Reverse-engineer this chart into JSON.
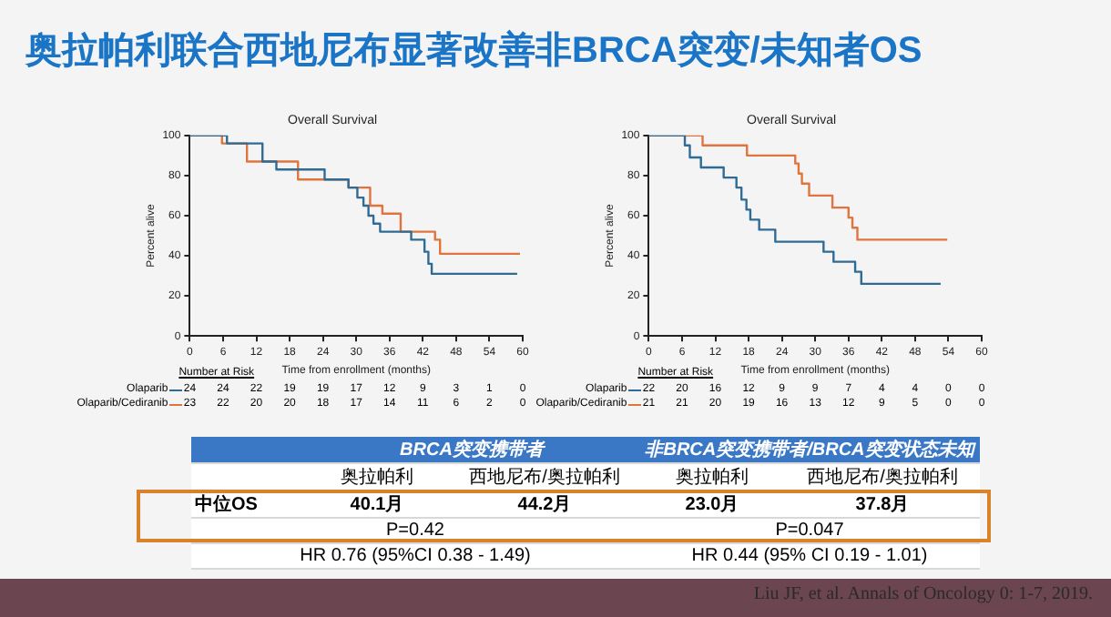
{
  "chart_data": [
    {
      "type": "step",
      "title": "Overall Survival",
      "xlabel": "Time from enrollment (months)",
      "ylabel": "Percent alive",
      "xlim": [
        0,
        60
      ],
      "xticks": [
        0,
        6,
        12,
        18,
        24,
        30,
        36,
        42,
        48,
        54,
        60
      ],
      "ylim": [
        0,
        100
      ],
      "yticks": [
        0,
        20,
        40,
        60,
        80,
        100
      ],
      "grid": false,
      "marker": "none",
      "legend": "bottom left",
      "annotations": [
        "Number at Risk",
        "24 24 22 19 19 17 12 9 3 1 0",
        "23 22 20 20 18 17 14 11 6 2 0"
      ],
      "series": [
        {
          "name": "Olaparib",
          "color": "#2f6b94",
          "x": [
            0,
            6.7,
            13.1,
            15.6,
            24.3,
            28.6,
            30.2,
            31.3,
            32.2,
            33.1,
            34.3,
            39.9,
            42.3,
            43,
            43.6,
            59
          ],
          "values": [
            100,
            96,
            87,
            83,
            78,
            74,
            69,
            65,
            60,
            56,
            52,
            48,
            42,
            36,
            31,
            31
          ]
        },
        {
          "name": "Olaparib/Cediranib",
          "color": "#e0743e",
          "x": [
            0,
            5.8,
            10.3,
            19.5,
            28.6,
            32.5,
            34.7,
            38,
            44.2,
            45.1,
            59.5
          ],
          "values": [
            100,
            96,
            87,
            78,
            74,
            65,
            61,
            52,
            48,
            41,
            41
          ]
        }
      ]
    },
    {
      "type": "step",
      "title": "Overall Survival",
      "xlabel": "Time from enrollment (months)",
      "ylabel": "Percent alive",
      "xlim": [
        0,
        60
      ],
      "xticks": [
        0,
        6,
        12,
        18,
        24,
        30,
        36,
        42,
        48,
        54,
        60
      ],
      "ylim": [
        0,
        100
      ],
      "yticks": [
        0,
        20,
        40,
        60,
        80,
        100
      ],
      "grid": false,
      "marker": "none",
      "legend": "bottom left",
      "annotations": [
        "Number at Risk",
        "22 20 16 12 9 9 7 4 4 0 0",
        "21 21 20 19 16 13 12 9 5 0 0"
      ],
      "series": [
        {
          "name": "Olaparib",
          "color": "#2f6b94",
          "x": [
            0,
            6.5,
            7.4,
            9.4,
            13.5,
            15.8,
            16.7,
            17.6,
            18.3,
            19.9,
            22.8,
            31.5,
            33.3,
            37.2,
            38.3,
            52.6
          ],
          "values": [
            100,
            95,
            89,
            84,
            79,
            74,
            68,
            63,
            58,
            53,
            47,
            42,
            37,
            32,
            26,
            26
          ]
        },
        {
          "name": "Olaparib/Cediranib",
          "color": "#e0743e",
          "x": [
            0,
            9.7,
            17.7,
            26.4,
            27,
            27.6,
            28.9,
            33.1,
            36,
            36.7,
            37.6,
            53.8
          ],
          "values": [
            100,
            95,
            90,
            86,
            81,
            76,
            70,
            64,
            59,
            54,
            48,
            48
          ]
        }
      ]
    },
    {
      "type": "other",
      "title": "奥拉帕利联合西地尼布显著改善非BRCA突变/未知者OS",
      "annotations": [
        "BRCA突变携带者",
        "非BRCA突变携带者/BRCA突变状态未知",
        "奥拉帕利",
        "西地尼布/奥拉帕利",
        "奥拉帕利",
        "西地尼布/奥拉帕利",
        "中位OS",
        "40.1月",
        "44.2月",
        "23.0月",
        "37.8月",
        "P=0.42",
        "P=0.047",
        "HR 0.76 (95%CI 0.38 - 1.49)",
        "HR 0.44 (95% CI 0.19 - 1.01)",
        "Liu JF, et al. Annals of Oncology 0: 1-7, 2019."
      ]
    }
  ]
}
